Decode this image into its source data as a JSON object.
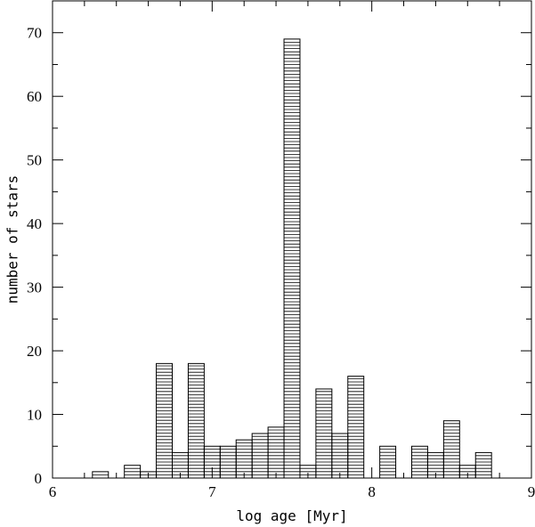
{
  "chart_data": {
    "type": "bar",
    "style": "histogram-horizontal-hatch",
    "xlabel": "log age [Myr]",
    "ylabel": "number of stars",
    "xlim": [
      6,
      9
    ],
    "ylim": [
      0,
      75
    ],
    "x_ticks": [
      6,
      7,
      8,
      9
    ],
    "y_ticks": [
      0,
      10,
      20,
      30,
      40,
      50,
      60,
      70
    ],
    "grid": false,
    "bin_width": 0.1,
    "bins": [
      {
        "x0": 6.25,
        "x1": 6.35,
        "count": 1
      },
      {
        "x0": 6.35,
        "x1": 6.45,
        "count": 0
      },
      {
        "x0": 6.45,
        "x1": 6.55,
        "count": 2
      },
      {
        "x0": 6.55,
        "x1": 6.65,
        "count": 1
      },
      {
        "x0": 6.65,
        "x1": 6.75,
        "count": 18
      },
      {
        "x0": 6.75,
        "x1": 6.85,
        "count": 4
      },
      {
        "x0": 6.85,
        "x1": 6.95,
        "count": 18
      },
      {
        "x0": 6.95,
        "x1": 7.05,
        "count": 5
      },
      {
        "x0": 7.05,
        "x1": 7.15,
        "count": 5
      },
      {
        "x0": 7.15,
        "x1": 7.25,
        "count": 6
      },
      {
        "x0": 7.25,
        "x1": 7.35,
        "count": 7
      },
      {
        "x0": 7.35,
        "x1": 7.45,
        "count": 8
      },
      {
        "x0": 7.45,
        "x1": 7.55,
        "count": 69
      },
      {
        "x0": 7.55,
        "x1": 7.65,
        "count": 2
      },
      {
        "x0": 7.65,
        "x1": 7.75,
        "count": 14
      },
      {
        "x0": 7.75,
        "x1": 7.85,
        "count": 7
      },
      {
        "x0": 7.85,
        "x1": 7.95,
        "count": 16
      },
      {
        "x0": 7.95,
        "x1": 8.05,
        "count": 0
      },
      {
        "x0": 8.05,
        "x1": 8.15,
        "count": 5
      },
      {
        "x0": 8.15,
        "x1": 8.25,
        "count": 0
      },
      {
        "x0": 8.25,
        "x1": 8.35,
        "count": 5
      },
      {
        "x0": 8.35,
        "x1": 8.45,
        "count": 4
      },
      {
        "x0": 8.45,
        "x1": 8.55,
        "count": 9
      },
      {
        "x0": 8.55,
        "x1": 8.65,
        "count": 2
      },
      {
        "x0": 8.65,
        "x1": 8.75,
        "count": 4
      }
    ]
  }
}
